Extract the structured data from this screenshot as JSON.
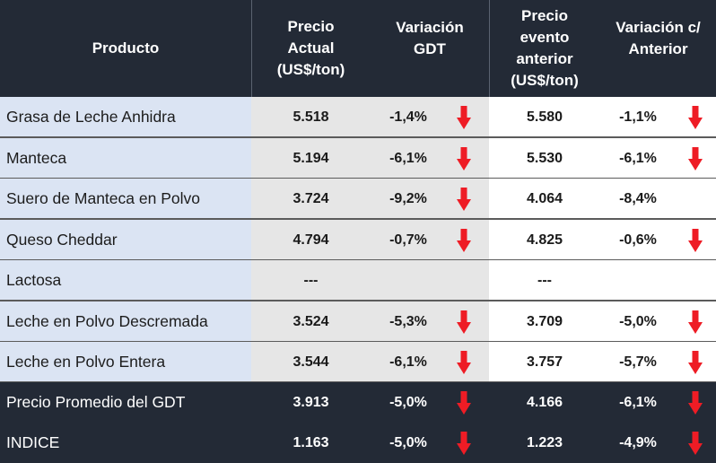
{
  "colors": {
    "header_bg": "#232a36",
    "product_col_bg": "#dbe4f3",
    "current_cols_bg": "#e6e6e6",
    "arrow_red": "#ee1c25"
  },
  "header": {
    "producto": "Producto",
    "precio_actual": [
      "Precio",
      "Actual",
      "(US$/ton)"
    ],
    "variacion_gdt": [
      "Variación",
      "GDT"
    ],
    "precio_anterior": [
      "Precio",
      "evento",
      "anterior",
      "(US$/ton)"
    ],
    "variacion_anterior": [
      "Variación c/",
      "Anterior"
    ]
  },
  "rows": [
    {
      "producto": "Grasa de Leche Anhidra",
      "precio_actual": "5.518",
      "variacion_gdt": "-1,4%",
      "gdt_arrow": "down-arrow-icon",
      "precio_anterior": "5.580",
      "variacion_anterior": "-1,1%",
      "ant_arrow": "down-arrow-icon"
    },
    {
      "producto": "Manteca",
      "precio_actual": "5.194",
      "variacion_gdt": "-6,1%",
      "gdt_arrow": "down-arrow-icon",
      "precio_anterior": "5.530",
      "variacion_anterior": "-6,1%",
      "ant_arrow": "down-arrow-icon"
    },
    {
      "producto": "Suero de Manteca en Polvo",
      "precio_actual": "3.724",
      "variacion_gdt": "-9,2%",
      "gdt_arrow": "down-arrow-icon",
      "precio_anterior": "4.064",
      "variacion_anterior": "-8,4%",
      "ant_arrow": ""
    },
    {
      "producto": "Queso Cheddar",
      "precio_actual": "4.794",
      "variacion_gdt": "-0,7%",
      "gdt_arrow": "down-arrow-icon",
      "precio_anterior": "4.825",
      "variacion_anterior": "-0,6%",
      "ant_arrow": "down-arrow-icon"
    },
    {
      "producto": "Lactosa",
      "precio_actual": "---",
      "variacion_gdt": "",
      "gdt_arrow": "",
      "precio_anterior": "---",
      "variacion_anterior": "",
      "ant_arrow": ""
    },
    {
      "producto": "Leche en Polvo Descremada",
      "precio_actual": "3.524",
      "variacion_gdt": "-5,3%",
      "gdt_arrow": "down-arrow-icon",
      "precio_anterior": "3.709",
      "variacion_anterior": "-5,0%",
      "ant_arrow": "down-arrow-icon"
    },
    {
      "producto": "Leche en Polvo Entera",
      "precio_actual": "3.544",
      "variacion_gdt": "-6,1%",
      "gdt_arrow": "down-arrow-icon",
      "precio_anterior": "3.757",
      "variacion_anterior": "-5,7%",
      "ant_arrow": "down-arrow-icon"
    }
  ],
  "summary": [
    {
      "producto": "Precio Promedio del GDT",
      "precio_actual": "3.913",
      "variacion_gdt": "-5,0%",
      "gdt_arrow": "down-arrow-icon",
      "precio_anterior": "4.166",
      "variacion_anterior": "-6,1%",
      "ant_arrow": "down-arrow-icon"
    },
    {
      "producto": "INDICE",
      "precio_actual": "1.163",
      "variacion_gdt": "-5,0%",
      "gdt_arrow": "down-arrow-icon",
      "precio_anterior": "1.223",
      "variacion_anterior": "-4,9%",
      "ant_arrow": "down-arrow-icon"
    }
  ]
}
